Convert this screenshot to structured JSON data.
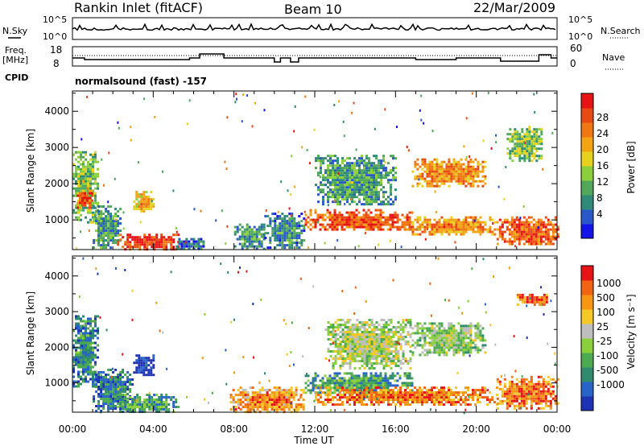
{
  "header": {
    "station": "Rankin Inlet (fitACF)",
    "beam": "Beam 10",
    "date": "22/Mar/2009"
  },
  "panels": {
    "nsky_label": "N.Sky",
    "nsearch_label": "N.Search",
    "nsky_ticks": [
      "10^5",
      "10^0"
    ],
    "nsearch_ticks": [
      "10^5",
      "10^0"
    ],
    "freq_label_top": "Freq.",
    "freq_label_unit": "[MHz]",
    "freq_ticks": [
      "18",
      "8"
    ],
    "nave_label": "Nave",
    "nave_ticks": [
      "60",
      "0"
    ],
    "cpid_label": "CPID",
    "cpid_text": "normalsound (fast) -157"
  },
  "chart_data": [
    {
      "type": "heatmap",
      "name": "power",
      "ylabel": "Slant Range [km]",
      "xlabel": "Time UT",
      "x_ticks": [
        "00:00",
        "04:00",
        "08:00",
        "12:00",
        "16:00",
        "20:00",
        "00:00"
      ],
      "x_range_hours": [
        0,
        24
      ],
      "y_ticks": [
        1000,
        2000,
        3000,
        4000
      ],
      "ylim": [
        180,
        4560
      ],
      "colorbar": {
        "label": "Power [dB]",
        "ticks": [
          "28",
          "24",
          "20",
          "16",
          "12",
          "8",
          "4"
        ],
        "colors": [
          "#1414e6",
          "#2a58c8",
          "#2f8a78",
          "#52a85a",
          "#8ccf3c",
          "#e6d21e",
          "#f2a414",
          "#f07814",
          "#e84a14",
          "#e61414"
        ]
      },
      "regions": [
        {
          "t": [
            0.0,
            1.2
          ],
          "r": [
            900,
            2900
          ],
          "level": 0.45
        },
        {
          "t": [
            0.2,
            1.0
          ],
          "r": [
            1300,
            1900
          ],
          "level": 0.85
        },
        {
          "t": [
            1.0,
            2.4
          ],
          "r": [
            200,
            1400
          ],
          "level": 0.35
        },
        {
          "t": [
            2.2,
            5.2
          ],
          "r": [
            200,
            620
          ],
          "level": 0.95
        },
        {
          "t": [
            3.0,
            4.0
          ],
          "r": [
            1200,
            1800
          ],
          "level": 0.65
        },
        {
          "t": [
            5.0,
            6.5
          ],
          "r": [
            200,
            500
          ],
          "level": 0.25
        },
        {
          "t": [
            8.0,
            9.5
          ],
          "r": [
            200,
            900
          ],
          "level": 0.35
        },
        {
          "t": [
            9.5,
            11.5
          ],
          "r": [
            200,
            1200
          ],
          "level": 0.3
        },
        {
          "t": [
            11.5,
            16.8
          ],
          "r": [
            700,
            1300
          ],
          "level": 0.85
        },
        {
          "t": [
            12.0,
            16.0
          ],
          "r": [
            1400,
            2800
          ],
          "level": 0.35
        },
        {
          "t": [
            16.8,
            21.0
          ],
          "r": [
            600,
            1100
          ],
          "level": 0.75
        },
        {
          "t": [
            16.8,
            20.5
          ],
          "r": [
            1900,
            2700
          ],
          "level": 0.75
        },
        {
          "t": [
            21.0,
            24.0
          ],
          "r": [
            300,
            1100
          ],
          "level": 0.85
        },
        {
          "t": [
            21.5,
            23.2
          ],
          "r": [
            2600,
            3600
          ],
          "level": 0.45
        }
      ]
    },
    {
      "type": "heatmap",
      "name": "velocity",
      "ylabel": "Slant Range [km]",
      "xlabel": "Time UT",
      "x_ticks": [
        "00:00",
        "04:00",
        "08:00",
        "12:00",
        "16:00",
        "20:00",
        "00:00"
      ],
      "x_range_hours": [
        0,
        24
      ],
      "y_ticks": [
        1000,
        2000,
        3000,
        4000
      ],
      "ylim": [
        180,
        4560
      ],
      "colorbar": {
        "label": "Velocity [m s⁻¹]",
        "ticks": [
          "1000",
          "500",
          "100",
          "25",
          "-25",
          "-100",
          "-500",
          "-1000"
        ],
        "colors": [
          "#1e32b4",
          "#2864c8",
          "#2f8a6e",
          "#4caa50",
          "#8ccf3c",
          "#bebebe",
          "#f5c828",
          "#f59614",
          "#f06414",
          "#e61414"
        ]
      },
      "regions": [
        {
          "t": [
            0.0,
            1.2
          ],
          "r": [
            900,
            2900
          ],
          "level": 0.3
        },
        {
          "t": [
            1.0,
            3.0
          ],
          "r": [
            200,
            1400
          ],
          "level": 0.25
        },
        {
          "t": [
            2.2,
            5.2
          ],
          "r": [
            200,
            700
          ],
          "level": 0.35
        },
        {
          "t": [
            3.0,
            4.0
          ],
          "r": [
            1200,
            1800
          ],
          "level": 0.05
        },
        {
          "t": [
            7.8,
            11.5
          ],
          "r": [
            200,
            900
          ],
          "level": 0.8
        },
        {
          "t": [
            11.5,
            16.8
          ],
          "r": [
            700,
            1300
          ],
          "level": 0.35
        },
        {
          "t": [
            12.5,
            16.8
          ],
          "r": [
            1400,
            2800
          ],
          "level": 0.55
        },
        {
          "t": [
            12.0,
            21.0
          ],
          "r": [
            400,
            900
          ],
          "level": 0.85
        },
        {
          "t": [
            16.8,
            20.5
          ],
          "r": [
            1800,
            2700
          ],
          "level": 0.5
        },
        {
          "t": [
            21.0,
            24.0
          ],
          "r": [
            300,
            1200
          ],
          "level": 0.85
        },
        {
          "t": [
            22.0,
            23.5
          ],
          "r": [
            3200,
            3500
          ],
          "level": 0.9
        }
      ]
    }
  ]
}
